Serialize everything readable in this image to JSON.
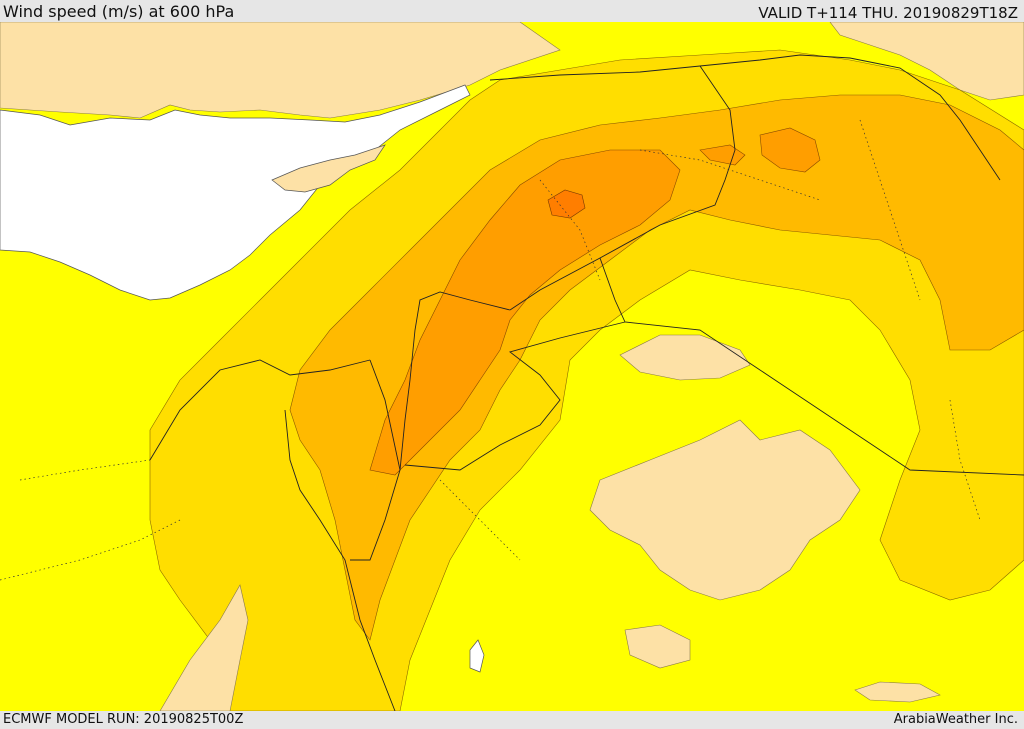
{
  "header": {
    "title": "Wind speed (m/s) at 600 hPa",
    "valid": "VALID T+114 THU. 20190829T18Z"
  },
  "footer": {
    "model_run": "ECMWF MODEL RUN: 20190825T00Z",
    "credit": "ArabiaWeather Inc."
  },
  "colors": {
    "sea": "#ffffff",
    "wind_lowest": "#fde1a6",
    "wind_low": "#ffff00",
    "wind_medium": "#ffde00",
    "wind_high": "#ffba00",
    "wind_higher": "#ff9e00",
    "wind_highest": "#ff7e00",
    "chrome": "#e6e6e6"
  }
}
